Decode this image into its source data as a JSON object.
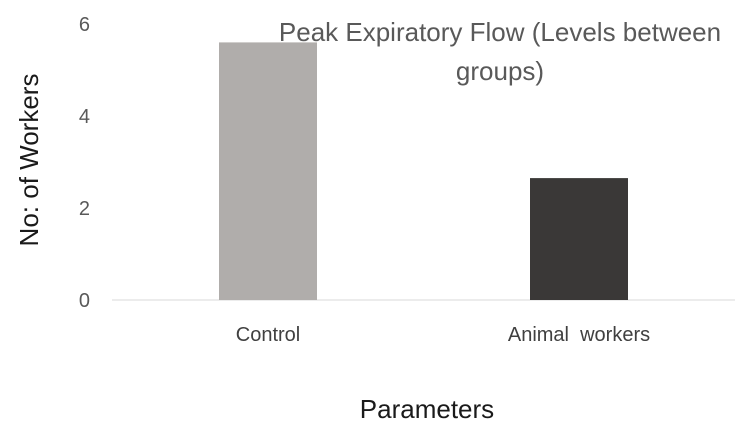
{
  "chart_data": {
    "type": "bar",
    "title_lines": [
      "Peak Expiratory Flow (Levels between",
      "groups)"
    ],
    "xlabel": "Parameters",
    "ylabel": "No: of Workers",
    "categories": [
      "Control",
      "Animal  workers"
    ],
    "values": [
      5.6,
      2.65
    ],
    "bar_colors": [
      "#b0adab",
      "#3a3837"
    ],
    "ylim": [
      0,
      6
    ],
    "yticks": [
      "0",
      "2",
      "4",
      "6"
    ],
    "grid": false,
    "legend": "none"
  }
}
